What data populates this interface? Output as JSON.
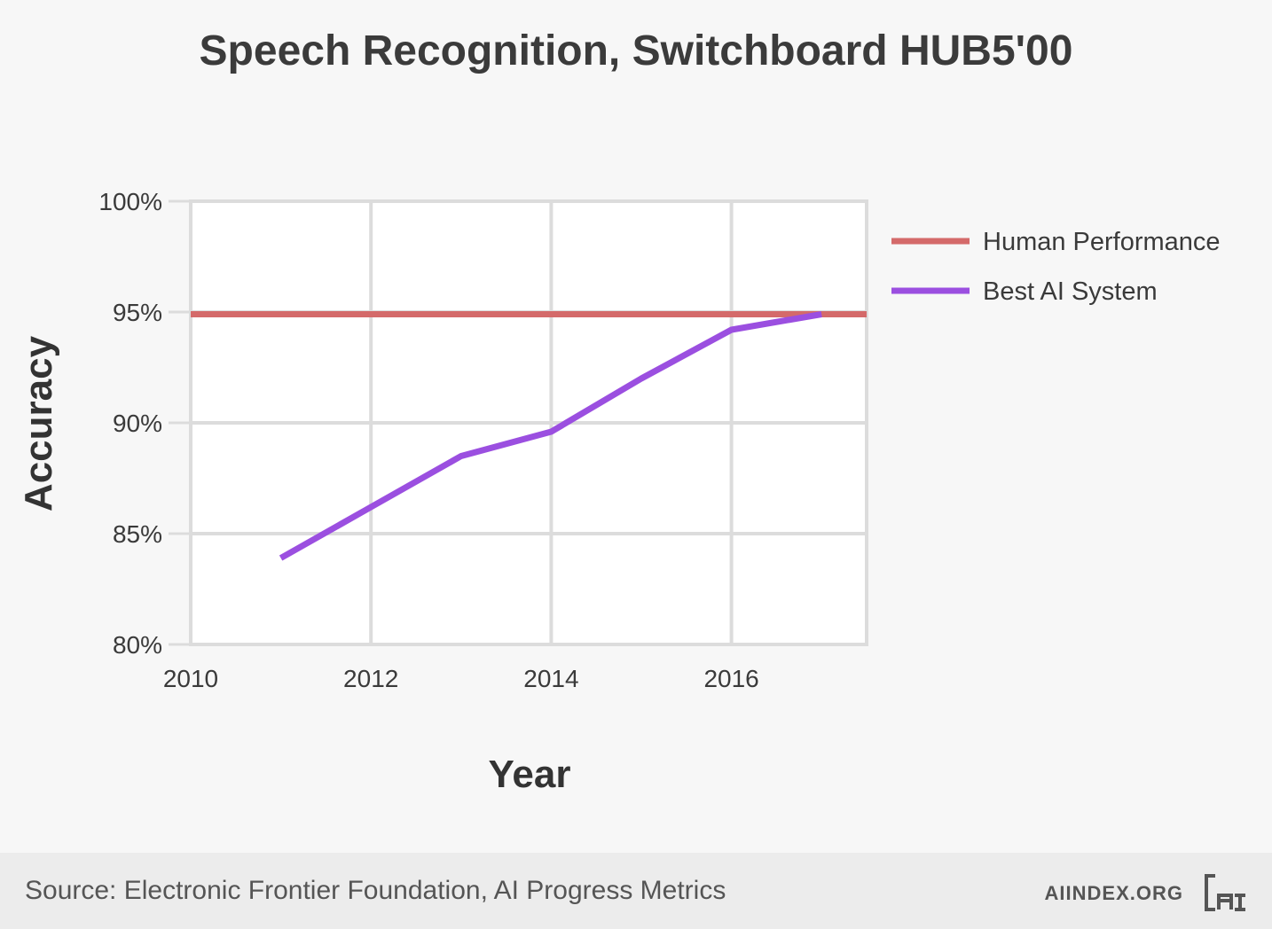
{
  "chart_data": {
    "type": "line",
    "title": "Speech Recognition, Switchboard HUB5'00",
    "xlabel": "Year",
    "ylabel": "Accuracy",
    "xlim": [
      2010,
      2017.5
    ],
    "ylim": [
      80,
      100
    ],
    "x_ticks": [
      2010,
      2012,
      2014,
      2016
    ],
    "x_tick_labels": [
      "2010",
      "2012",
      "2014",
      "2016"
    ],
    "y_ticks": [
      80,
      85,
      90,
      95,
      100
    ],
    "y_tick_labels": [
      "80%",
      "85%",
      "90%",
      "95%",
      "100%"
    ],
    "grid": true,
    "legend_position": "right",
    "series": [
      {
        "name": "Human Performance",
        "color": "#d46a6a",
        "x": [
          2010,
          2017.5
        ],
        "y": [
          94.9,
          94.9
        ]
      },
      {
        "name": "Best AI System",
        "color": "#9b4fe0",
        "x": [
          2011,
          2012,
          2013,
          2014,
          2015,
          2016,
          2017
        ],
        "y": [
          83.9,
          86.2,
          88.5,
          89.6,
          92.0,
          94.2,
          94.9
        ]
      }
    ]
  },
  "footer": {
    "source": "Source: Electronic Frontier Foundation, AI Progress Metrics",
    "site": "AIINDEX.ORG",
    "logo_icon": "ai-index-logo-icon"
  }
}
